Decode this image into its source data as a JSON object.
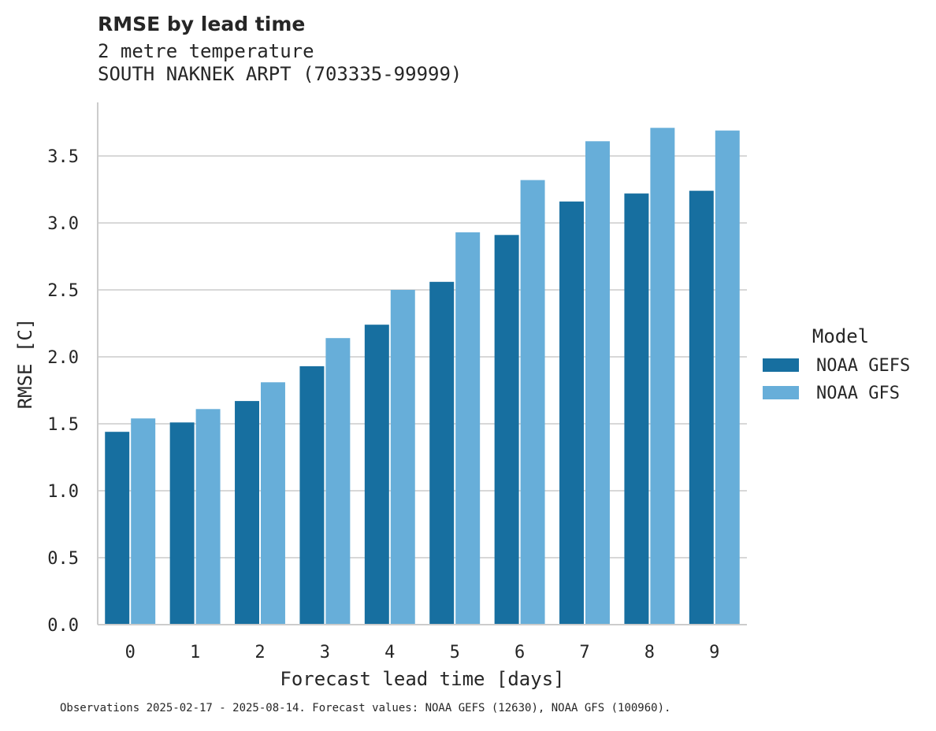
{
  "chart_data": {
    "type": "bar",
    "title": "RMSE by lead time",
    "subtitle_lines": [
      "2 metre temperature",
      "SOUTH NAKNEK ARPT (703335-99999)"
    ],
    "xlabel": "Forecast lead time [days]",
    "ylabel": "RMSE [C]",
    "categories": [
      "0",
      "1",
      "2",
      "3",
      "4",
      "5",
      "6",
      "7",
      "8",
      "9"
    ],
    "ylim": [
      0,
      3.9
    ],
    "yticks": [
      0.0,
      0.5,
      1.0,
      1.5,
      2.0,
      2.5,
      3.0,
      3.5
    ],
    "ytick_labels": [
      "0.0",
      "0.5",
      "1.0",
      "1.5",
      "2.0",
      "2.5",
      "3.0",
      "3.5"
    ],
    "grid": "horizontal",
    "legend": {
      "title": "Model",
      "placement": "right"
    },
    "series": [
      {
        "name": "NOAA GEFS",
        "color": "#176fa0",
        "values": [
          1.44,
          1.51,
          1.67,
          1.93,
          2.24,
          2.56,
          2.91,
          3.16,
          3.22,
          3.24
        ]
      },
      {
        "name": "NOAA GFS",
        "color": "#67aed9",
        "values": [
          1.54,
          1.61,
          1.81,
          2.14,
          2.5,
          2.93,
          3.32,
          3.61,
          3.71,
          3.69
        ]
      }
    ],
    "footnote": "Observations 2025-02-17 - 2025-08-14. Forecast values: NOAA GEFS (12630), NOAA GFS (100960)."
  }
}
